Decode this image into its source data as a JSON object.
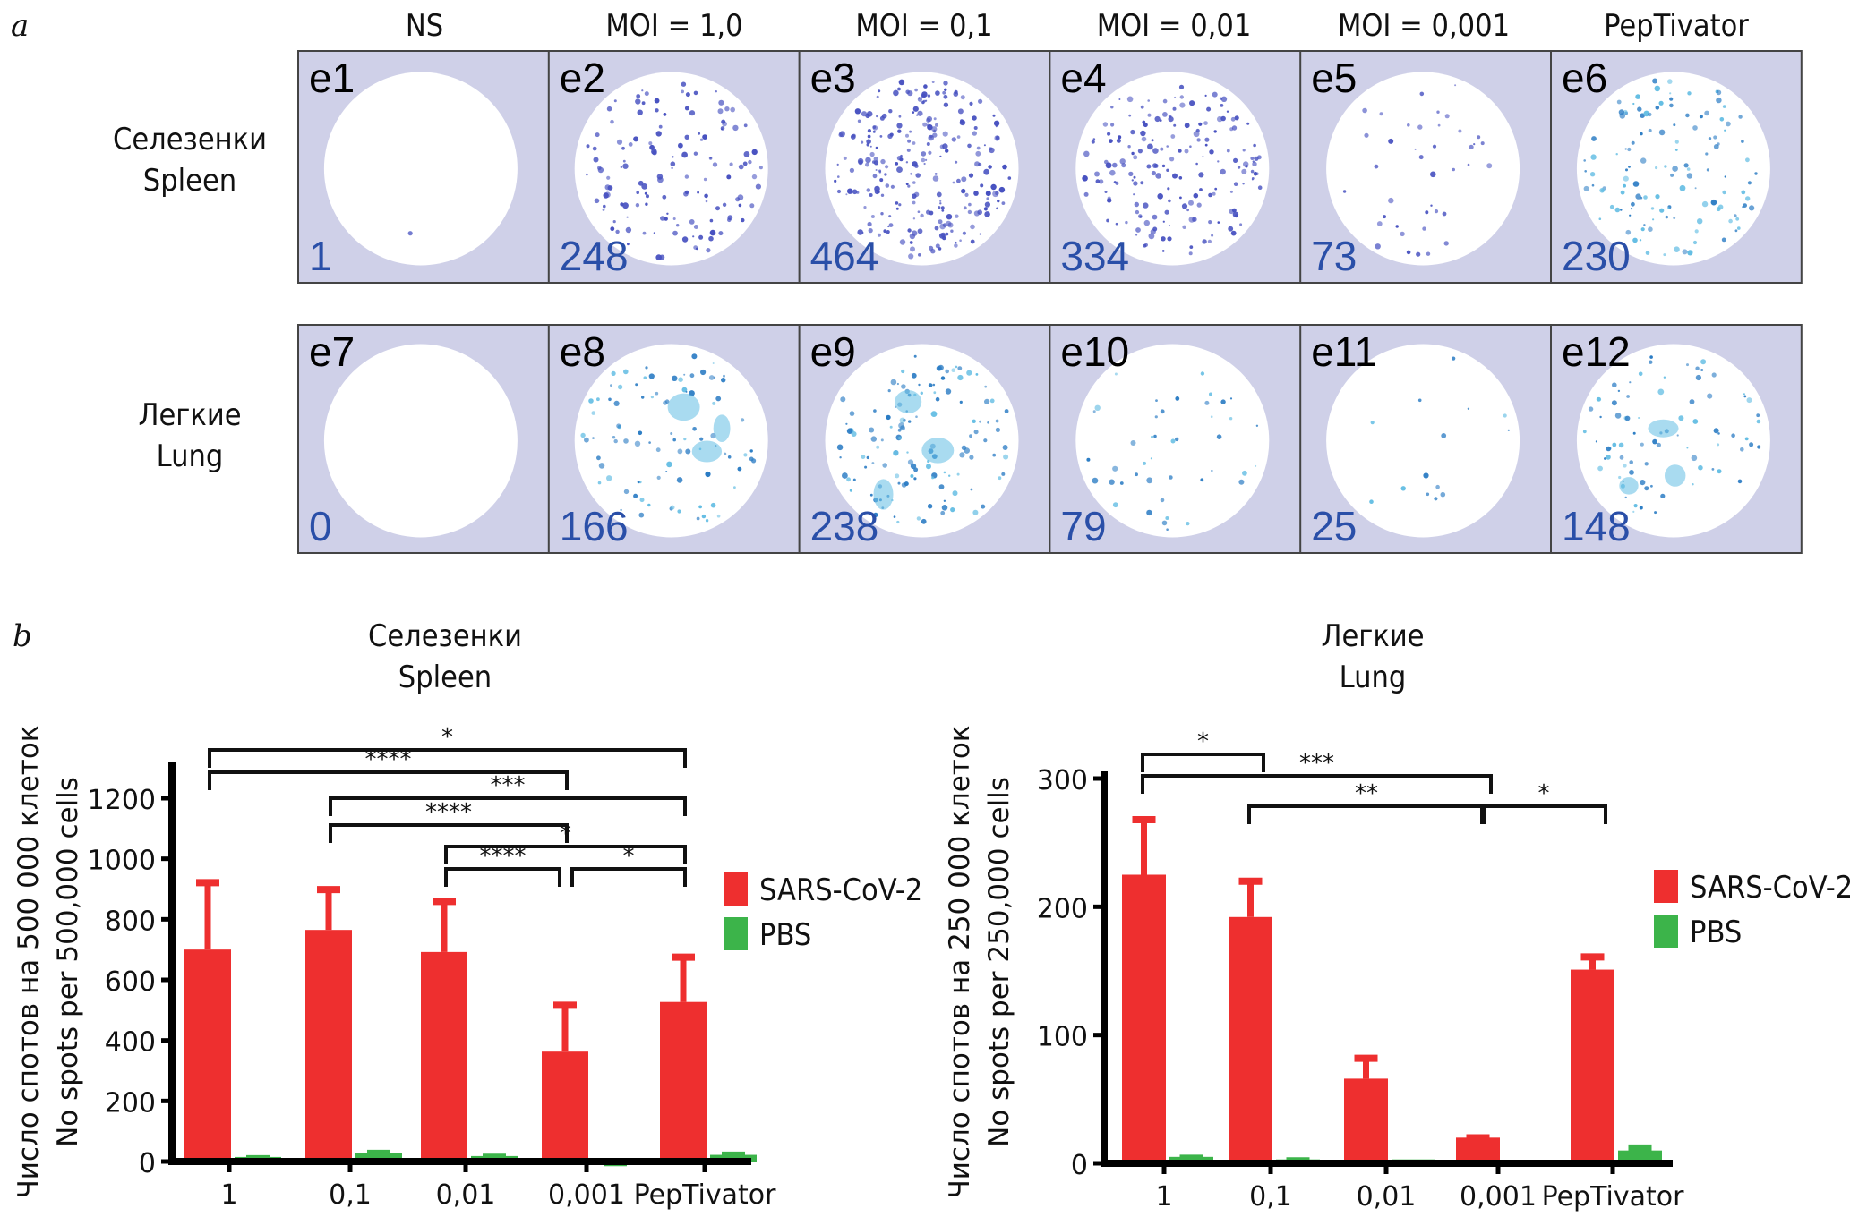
{
  "figure": {
    "panel_a_label": "a",
    "panel_b_label": "b",
    "column_headers": [
      "NS",
      "MOI = 1,0",
      "MOI = 0,1",
      "MOI = 0,01",
      "MOI = 0,001",
      "PepTivator"
    ],
    "row_labels": [
      {
        "ru": "Селезенки",
        "en": "Spleen"
      },
      {
        "ru": "Легкие",
        "en": "Lung"
      }
    ],
    "wells": [
      [
        {
          "id": "e1",
          "count": "1"
        },
        {
          "id": "e2",
          "count": "248"
        },
        {
          "id": "e3",
          "count": "464"
        },
        {
          "id": "e4",
          "count": "334"
        },
        {
          "id": "e5",
          "count": "73"
        },
        {
          "id": "e6",
          "count": "230"
        }
      ],
      [
        {
          "id": "e7",
          "count": "0"
        },
        {
          "id": "e8",
          "count": "166"
        },
        {
          "id": "e9",
          "count": "238"
        },
        {
          "id": "e10",
          "count": "79"
        },
        {
          "id": "e11",
          "count": "25"
        },
        {
          "id": "e12",
          "count": "148"
        }
      ]
    ],
    "colors": {
      "well_background": "#cfd0e8",
      "well_count": "#2a4fa8",
      "spleen_spot": "#4650c0",
      "lung_spot": "#2b7cc4",
      "lung_spot_light": "#63bde3",
      "sars": "#ee2f2f",
      "pbs": "#3cb44a"
    }
  },
  "chart_data": [
    {
      "type": "bar",
      "title": "Селезенки",
      "subtitle": "Spleen",
      "ylabel": "Число спотов на 500 000 клеток",
      "ylabel2": "No spots per 500,000 cells",
      "xlabel": "",
      "categories": [
        "1",
        "0,1",
        "0,01",
        "0,001",
        "PepTivator"
      ],
      "ylim": [
        0,
        1300
      ],
      "yticks": [
        0,
        200,
        400,
        600,
        800,
        1000,
        1200
      ],
      "ytick_labels": [
        "0",
        "200",
        "400",
        "600",
        "800",
        "1000",
        "1200"
      ],
      "grid": false,
      "legend_position": "right",
      "series": [
        {
          "name": "SARS-CoV-2",
          "color": "#ee2f2f",
          "values": [
            700,
            765,
            692,
            363,
            527
          ],
          "error_upper": [
            930,
            907,
            868,
            525,
            684
          ]
        },
        {
          "name": "PBS",
          "color": "#3cb44a",
          "values": [
            15,
            28,
            18,
            4,
            22
          ],
          "error_upper": [
            18,
            36,
            23,
            5,
            30
          ]
        }
      ],
      "significance": [
        {
          "from": 0,
          "to": 4,
          "label": "*"
        },
        {
          "from": 0,
          "to": 3,
          "label": "****"
        },
        {
          "from": 1,
          "to": 4,
          "label": "***"
        },
        {
          "from": 1,
          "to": 3,
          "label": "****"
        },
        {
          "from": 2,
          "to": 4,
          "label": "*"
        },
        {
          "from": 2,
          "to": 3,
          "label": "****"
        },
        {
          "from": 3,
          "to": 4,
          "label": "*"
        }
      ]
    },
    {
      "type": "bar",
      "title": "Легкие",
      "subtitle": "Lung",
      "ylabel": "Число спотов на 250 000 клеток",
      "ylabel2": "No spots per 250,000 cells",
      "xlabel": "",
      "categories": [
        "1",
        "0,1",
        "0,01",
        "0,001",
        "PepTivator"
      ],
      "ylim": [
        0,
        300
      ],
      "yticks": [
        0,
        100,
        200,
        300
      ],
      "ytick_labels": [
        "0",
        "100",
        "200",
        "300"
      ],
      "grid": false,
      "legend_position": "right",
      "series": [
        {
          "name": "SARS-CoV-2",
          "color": "#ee2f2f",
          "values": [
            225,
            192,
            66,
            20,
            151
          ],
          "error_upper": [
            270,
            222,
            84,
            22,
            163
          ]
        },
        {
          "name": "PBS",
          "color": "#3cb44a",
          "values": [
            5,
            3,
            3,
            1,
            10
          ],
          "error_upper": [
            6,
            4,
            3,
            1,
            14
          ]
        }
      ],
      "significance": [
        {
          "from": 0,
          "to": 1,
          "label": "*"
        },
        {
          "from": 0,
          "to": 3,
          "label": "***"
        },
        {
          "from": 1,
          "to": 3,
          "label": "**"
        },
        {
          "from": 3,
          "to": 4,
          "label": "*"
        }
      ]
    }
  ]
}
